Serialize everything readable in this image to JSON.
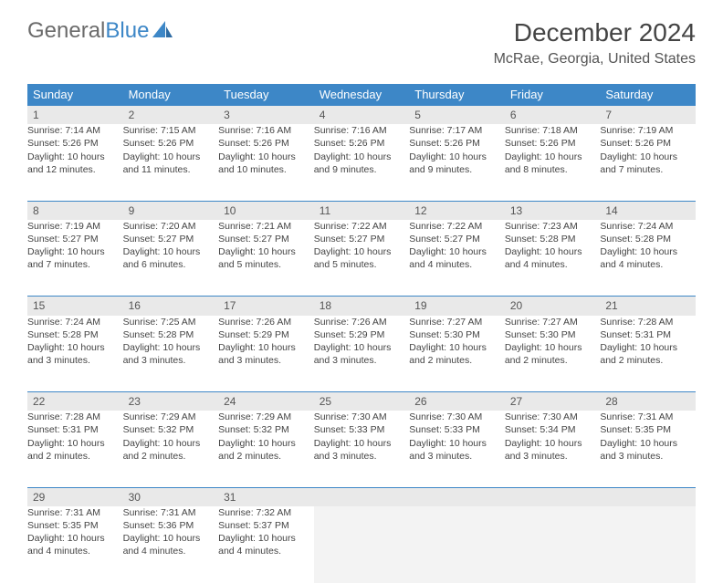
{
  "logo": {
    "text1": "General",
    "text2": "Blue"
  },
  "title": "December 2024",
  "location": "McRae, Georgia, United States",
  "colors": {
    "header_bg": "#3d87c7",
    "header_fg": "#ffffff",
    "daynum_bg": "#e9e9e9",
    "border": "#3d87c7",
    "logo_gray": "#6b6b6b",
    "logo_blue": "#3d87c7",
    "text": "#444444",
    "empty_bg": "#f3f3f3",
    "page_bg": "#ffffff"
  },
  "typography": {
    "title_fontsize": 28,
    "location_fontsize": 16,
    "dayheader_fontsize": 13,
    "cell_fontsize": 10.5,
    "logo_fontsize": 24
  },
  "dayHeaders": [
    "Sunday",
    "Monday",
    "Tuesday",
    "Wednesday",
    "Thursday",
    "Friday",
    "Saturday"
  ],
  "weeks": [
    [
      {
        "day": "1",
        "sunrise": "7:14 AM",
        "sunset": "5:26 PM",
        "daylight": "10 hours and 12 minutes."
      },
      {
        "day": "2",
        "sunrise": "7:15 AM",
        "sunset": "5:26 PM",
        "daylight": "10 hours and 11 minutes."
      },
      {
        "day": "3",
        "sunrise": "7:16 AM",
        "sunset": "5:26 PM",
        "daylight": "10 hours and 10 minutes."
      },
      {
        "day": "4",
        "sunrise": "7:16 AM",
        "sunset": "5:26 PM",
        "daylight": "10 hours and 9 minutes."
      },
      {
        "day": "5",
        "sunrise": "7:17 AM",
        "sunset": "5:26 PM",
        "daylight": "10 hours and 9 minutes."
      },
      {
        "day": "6",
        "sunrise": "7:18 AM",
        "sunset": "5:26 PM",
        "daylight": "10 hours and 8 minutes."
      },
      {
        "day": "7",
        "sunrise": "7:19 AM",
        "sunset": "5:26 PM",
        "daylight": "10 hours and 7 minutes."
      }
    ],
    [
      {
        "day": "8",
        "sunrise": "7:19 AM",
        "sunset": "5:27 PM",
        "daylight": "10 hours and 7 minutes."
      },
      {
        "day": "9",
        "sunrise": "7:20 AM",
        "sunset": "5:27 PM",
        "daylight": "10 hours and 6 minutes."
      },
      {
        "day": "10",
        "sunrise": "7:21 AM",
        "sunset": "5:27 PM",
        "daylight": "10 hours and 5 minutes."
      },
      {
        "day": "11",
        "sunrise": "7:22 AM",
        "sunset": "5:27 PM",
        "daylight": "10 hours and 5 minutes."
      },
      {
        "day": "12",
        "sunrise": "7:22 AM",
        "sunset": "5:27 PM",
        "daylight": "10 hours and 4 minutes."
      },
      {
        "day": "13",
        "sunrise": "7:23 AM",
        "sunset": "5:28 PM",
        "daylight": "10 hours and 4 minutes."
      },
      {
        "day": "14",
        "sunrise": "7:24 AM",
        "sunset": "5:28 PM",
        "daylight": "10 hours and 4 minutes."
      }
    ],
    [
      {
        "day": "15",
        "sunrise": "7:24 AM",
        "sunset": "5:28 PM",
        "daylight": "10 hours and 3 minutes."
      },
      {
        "day": "16",
        "sunrise": "7:25 AM",
        "sunset": "5:28 PM",
        "daylight": "10 hours and 3 minutes."
      },
      {
        "day": "17",
        "sunrise": "7:26 AM",
        "sunset": "5:29 PM",
        "daylight": "10 hours and 3 minutes."
      },
      {
        "day": "18",
        "sunrise": "7:26 AM",
        "sunset": "5:29 PM",
        "daylight": "10 hours and 3 minutes."
      },
      {
        "day": "19",
        "sunrise": "7:27 AM",
        "sunset": "5:30 PM",
        "daylight": "10 hours and 2 minutes."
      },
      {
        "day": "20",
        "sunrise": "7:27 AM",
        "sunset": "5:30 PM",
        "daylight": "10 hours and 2 minutes."
      },
      {
        "day": "21",
        "sunrise": "7:28 AM",
        "sunset": "5:31 PM",
        "daylight": "10 hours and 2 minutes."
      }
    ],
    [
      {
        "day": "22",
        "sunrise": "7:28 AM",
        "sunset": "5:31 PM",
        "daylight": "10 hours and 2 minutes."
      },
      {
        "day": "23",
        "sunrise": "7:29 AM",
        "sunset": "5:32 PM",
        "daylight": "10 hours and 2 minutes."
      },
      {
        "day": "24",
        "sunrise": "7:29 AM",
        "sunset": "5:32 PM",
        "daylight": "10 hours and 2 minutes."
      },
      {
        "day": "25",
        "sunrise": "7:30 AM",
        "sunset": "5:33 PM",
        "daylight": "10 hours and 3 minutes."
      },
      {
        "day": "26",
        "sunrise": "7:30 AM",
        "sunset": "5:33 PM",
        "daylight": "10 hours and 3 minutes."
      },
      {
        "day": "27",
        "sunrise": "7:30 AM",
        "sunset": "5:34 PM",
        "daylight": "10 hours and 3 minutes."
      },
      {
        "day": "28",
        "sunrise": "7:31 AM",
        "sunset": "5:35 PM",
        "daylight": "10 hours and 3 minutes."
      }
    ],
    [
      {
        "day": "29",
        "sunrise": "7:31 AM",
        "sunset": "5:35 PM",
        "daylight": "10 hours and 4 minutes."
      },
      {
        "day": "30",
        "sunrise": "7:31 AM",
        "sunset": "5:36 PM",
        "daylight": "10 hours and 4 minutes."
      },
      {
        "day": "31",
        "sunrise": "7:32 AM",
        "sunset": "5:37 PM",
        "daylight": "10 hours and 4 minutes."
      },
      null,
      null,
      null,
      null
    ]
  ],
  "labels": {
    "sunrise": "Sunrise: ",
    "sunset": "Sunset: ",
    "daylight": "Daylight: "
  }
}
